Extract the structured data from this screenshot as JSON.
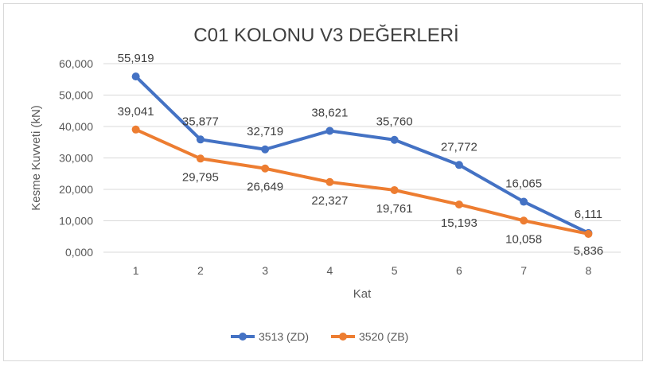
{
  "chart_data": {
    "type": "line",
    "title": "C01 KOLONU V3 DEĞERLERİ",
    "xlabel": "Kat",
    "ylabel": "Kesme Kuvveti (kN)",
    "categories": [
      "1",
      "2",
      "3",
      "4",
      "5",
      "6",
      "7",
      "8"
    ],
    "ylim": [
      0,
      60
    ],
    "yticks": [
      "0,000",
      "10,000",
      "20,000",
      "30,000",
      "40,000",
      "50,000",
      "60,000"
    ],
    "grid": true,
    "legend_position": "bottom",
    "series": [
      {
        "name": "3513 (ZD)",
        "color": "#4472c4",
        "values": [
          55.919,
          35.877,
          32.719,
          38.621,
          35.76,
          27.772,
          16.065,
          6.111
        ],
        "labels": [
          "55,919",
          "35,877",
          "32,719",
          "38,621",
          "35,760",
          "27,772",
          "16,065",
          "6,111"
        ]
      },
      {
        "name": "3520 (ZB)",
        "color": "#ed7d31",
        "values": [
          39.041,
          29.795,
          26.649,
          22.327,
          19.761,
          15.193,
          10.058,
          5.836
        ],
        "labels": [
          "39,041",
          "29,795",
          "26,649",
          "22,327",
          "19,761",
          "15,193",
          "10,058",
          "5,836"
        ]
      }
    ]
  }
}
